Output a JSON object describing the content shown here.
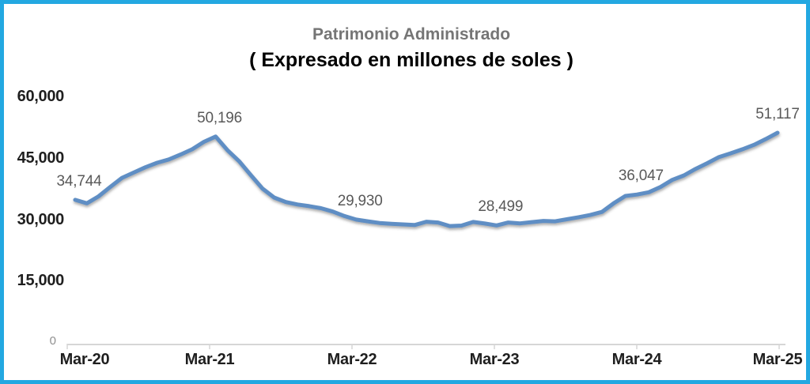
{
  "colors": {
    "frame_border": "#23a8e1",
    "line": "#5e8ec4",
    "line_shadow": "#4a4a4a",
    "title": "#757575",
    "subtitle": "#000000",
    "tick_label": "#1f1f1f",
    "data_label": "#595959",
    "zero_label": "#8f8f8f",
    "axis": "#d6d6d6",
    "background": "#ffffff"
  },
  "chart_data": {
    "type": "line",
    "title": "Patrimonio Administrado",
    "subtitle": "( Expresado en millones de soles )",
    "xlabel": "",
    "ylabel": "",
    "x_unit": "monthly, Mar-2020 to Mar-2025",
    "ylim": [
      0,
      60000
    ],
    "grid": false,
    "legend": false,
    "x_tick_labels": [
      "Mar-20",
      "Mar-21",
      "Mar-22",
      "Mar-23",
      "Mar-24",
      "Mar-25"
    ],
    "y_ticks": [
      {
        "value": 60000,
        "label": "60,000"
      },
      {
        "value": 45000,
        "label": "45,000"
      },
      {
        "value": 30000,
        "label": "30,000"
      },
      {
        "value": 15000,
        "label": "15,000"
      }
    ],
    "y_zero_label": "0",
    "series": [
      {
        "name": "Patrimonio Administrado",
        "color": "#5e8ec4",
        "values": [
          34744,
          33900,
          35600,
          37900,
          40100,
          41400,
          42700,
          43800,
          44600,
          45800,
          47100,
          48900,
          50196,
          46900,
          44200,
          40800,
          37500,
          35300,
          34200,
          33600,
          33200,
          32700,
          31900,
          30800,
          29930,
          29500,
          29100,
          28900,
          28750,
          28600,
          29400,
          29200,
          28350,
          28450,
          29350,
          28950,
          28499,
          29200,
          29000,
          29300,
          29600,
          29500,
          30000,
          30500,
          31050,
          31800,
          33900,
          35700,
          36047,
          36600,
          37900,
          39600,
          40700,
          42300,
          43700,
          45200,
          46100,
          47100,
          48200,
          49600,
          51117
        ]
      }
    ],
    "data_labels": [
      {
        "month_index": 0,
        "x_label": "Mar-20",
        "value": 34744,
        "text": "34,744"
      },
      {
        "month_index": 12,
        "x_label": "Mar-21",
        "value": 50196,
        "text": "50,196"
      },
      {
        "month_index": 24,
        "x_label": "Mar-22",
        "value": 29930,
        "text": "29,930"
      },
      {
        "month_index": 36,
        "x_label": "Mar-23",
        "value": 28499,
        "text": "28,499"
      },
      {
        "month_index": 48,
        "x_label": "Mar-24",
        "value": 36047,
        "text": "36,047"
      },
      {
        "month_index": 60,
        "x_label": "Mar-25",
        "value": 51117,
        "text": "51,117"
      }
    ]
  }
}
